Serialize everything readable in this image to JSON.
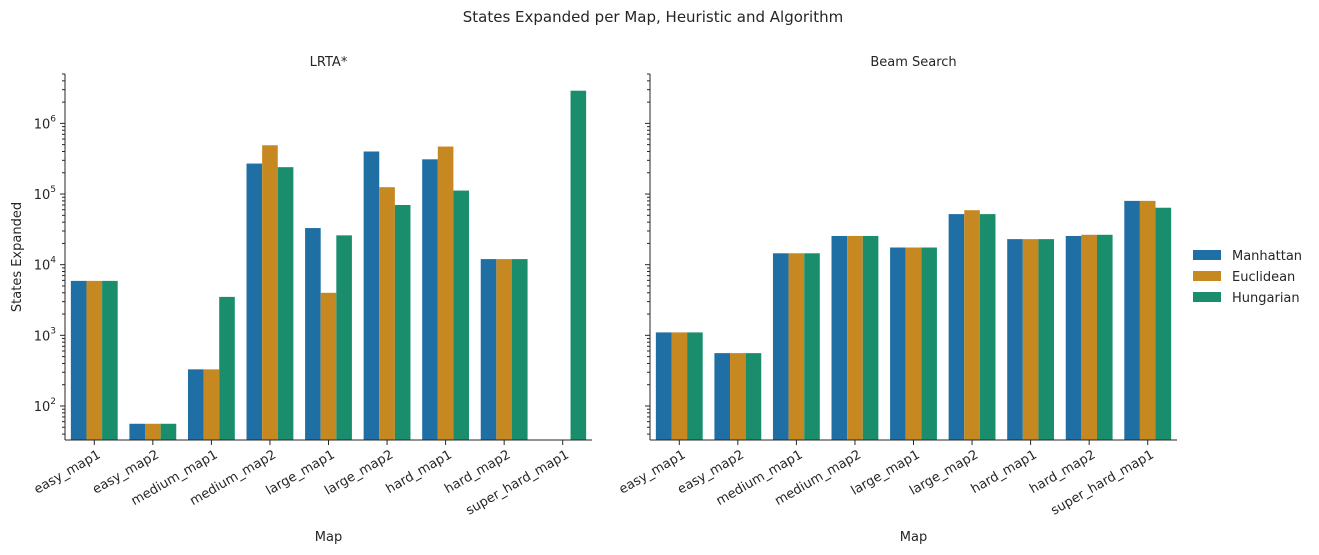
{
  "figure": {
    "title": "States Expanded per Map, Heuristic and Algorithm"
  },
  "legend": {
    "placement": "right",
    "entries": [
      "Manhattan",
      "Euclidean",
      "Hungarian"
    ]
  },
  "colors": {
    "Manhattan": "#1f6fa5",
    "Euclidean": "#c68820",
    "Hungarian": "#1a8e6c"
  },
  "chart_data": [
    {
      "type": "bar",
      "title": "LRTA*",
      "xlabel": "Map",
      "ylabel": "States Expanded",
      "yscale": "log",
      "ylim": [
        33,
        5000000
      ],
      "categories": [
        "easy_map1",
        "easy_map2",
        "medium_map1",
        "medium_map2",
        "large_map1",
        "large_map2",
        "hard_map1",
        "hard_map2",
        "super_hard_map1"
      ],
      "series": [
        {
          "name": "Manhattan",
          "values": [
            5900,
            56,
            330,
            270000,
            33000,
            400000,
            310000,
            12000,
            null
          ]
        },
        {
          "name": "Euclidean",
          "values": [
            5900,
            56,
            330,
            490000,
            4000,
            125000,
            470000,
            12000,
            null
          ]
        },
        {
          "name": "Hungarian",
          "values": [
            5900,
            56,
            3500,
            240000,
            26000,
            70000,
            112000,
            12000,
            2900000
          ]
        }
      ]
    },
    {
      "type": "bar",
      "title": "Beam Search",
      "xlabel": "Map",
      "ylabel": "",
      "yscale": "log",
      "ylim": [
        33,
        5000000
      ],
      "categories": [
        "easy_map1",
        "easy_map2",
        "medium_map1",
        "medium_map2",
        "large_map1",
        "large_map2",
        "hard_map1",
        "hard_map2",
        "super_hard_map1"
      ],
      "series": [
        {
          "name": "Manhattan",
          "values": [
            1100,
            560,
            14500,
            25500,
            17500,
            52000,
            23000,
            25500,
            80000
          ]
        },
        {
          "name": "Euclidean",
          "values": [
            1100,
            560,
            14500,
            25500,
            17500,
            59000,
            23000,
            26500,
            80000
          ]
        },
        {
          "name": "Hungarian",
          "values": [
            1100,
            560,
            14500,
            25500,
            17500,
            52000,
            23000,
            26500,
            64000
          ]
        }
      ]
    }
  ]
}
